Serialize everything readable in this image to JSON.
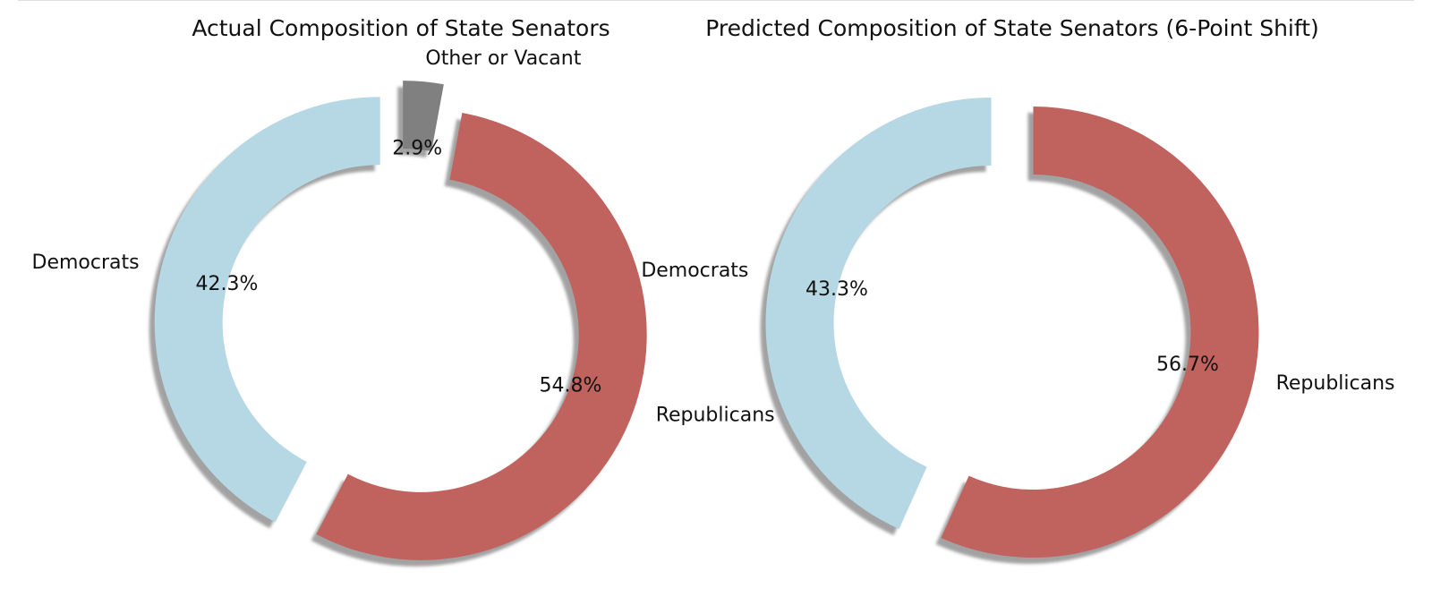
{
  "chart_data": [
    {
      "type": "pie",
      "title": "Actual Composition of State Senators",
      "donut": true,
      "shadow": true,
      "start_angle": 90,
      "labels": [
        "Democrats",
        "Republicans",
        "Other or Vacant"
      ],
      "values": [
        42.3,
        54.8,
        2.9
      ],
      "pct_labels": [
        "42.3%",
        "54.8%",
        "2.9%"
      ],
      "colors": [
        "#b6d8e4",
        "#c0625e",
        "#808080"
      ]
    },
    {
      "type": "pie",
      "title": "Predicted Composition of State Senators (6-Point Shift)",
      "donut": true,
      "shadow": true,
      "start_angle": 90,
      "labels": [
        "Democrats",
        "Republicans"
      ],
      "values": [
        43.3,
        56.7
      ],
      "pct_labels": [
        "43.3%",
        "56.7%"
      ],
      "colors": [
        "#b6d8e4",
        "#c0625e"
      ]
    }
  ]
}
